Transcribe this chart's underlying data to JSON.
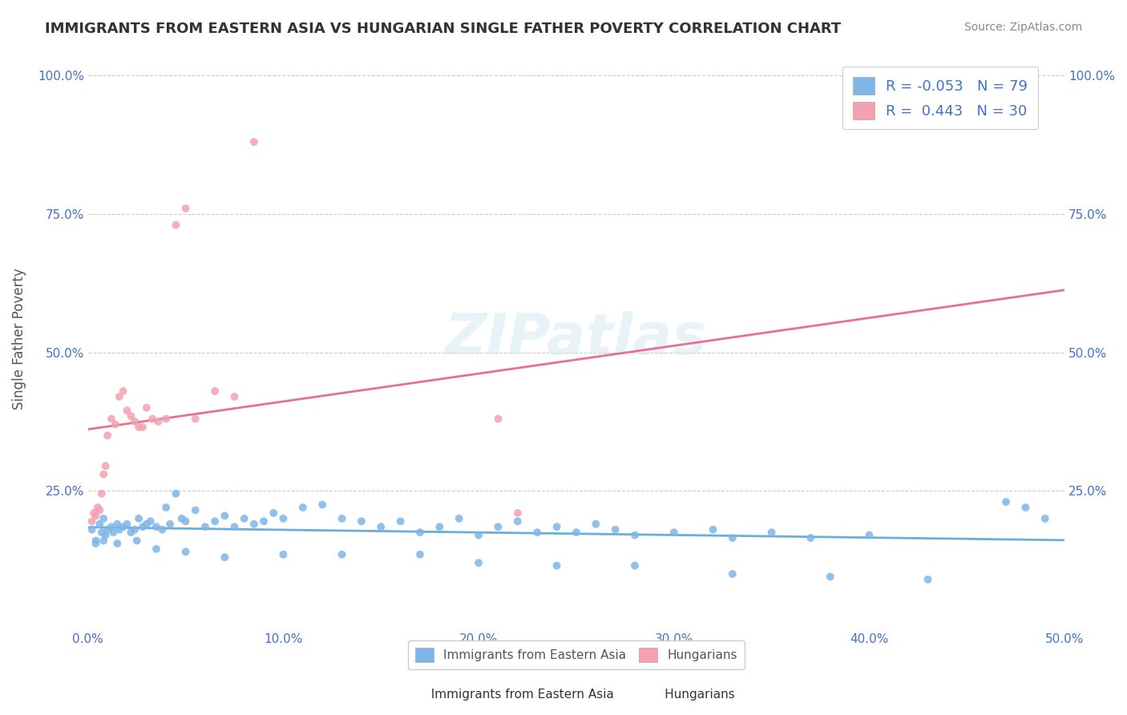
{
  "title": "IMMIGRANTS FROM EASTERN ASIA VS HUNGARIAN SINGLE FATHER POVERTY CORRELATION CHART",
  "source": "Source: ZipAtlas.com",
  "xlabel": "",
  "ylabel": "Single Father Poverty",
  "xlim": [
    0.0,
    0.5
  ],
  "ylim": [
    0.0,
    1.05
  ],
  "xtick_labels": [
    "0.0%",
    "10.0%",
    "20.0%",
    "30.0%",
    "40.0%",
    "50.0%"
  ],
  "xtick_vals": [
    0.0,
    0.1,
    0.2,
    0.3,
    0.4,
    0.5
  ],
  "ytick_labels": [
    "25.0%",
    "50.0%",
    "75.0%",
    "100.0%"
  ],
  "ytick_vals": [
    0.25,
    0.5,
    0.75,
    1.0
  ],
  "right_ytick_labels": [
    "25.0%",
    "50.0%",
    "75.0%",
    "100.0%"
  ],
  "right_ytick_vals": [
    0.25,
    0.5,
    0.75,
    1.0
  ],
  "legend_r1": "R = -0.053",
  "legend_n1": "N = 79",
  "legend_r2": "R =  0.443",
  "legend_n2": "N = 30",
  "color_blue": "#7EB6E8",
  "color_pink": "#F4A0B0",
  "line_color_blue": "#6AAEDC",
  "line_color_pink": "#E87090",
  "watermark": "ZIPatlas",
  "background_color": "#FFFFFF",
  "blue_scatter_x": [
    0.002,
    0.004,
    0.006,
    0.007,
    0.008,
    0.009,
    0.01,
    0.012,
    0.013,
    0.015,
    0.016,
    0.018,
    0.02,
    0.022,
    0.024,
    0.026,
    0.028,
    0.03,
    0.032,
    0.035,
    0.038,
    0.04,
    0.042,
    0.045,
    0.048,
    0.05,
    0.055,
    0.06,
    0.065,
    0.07,
    0.075,
    0.08,
    0.085,
    0.09,
    0.095,
    0.1,
    0.11,
    0.12,
    0.13,
    0.14,
    0.15,
    0.16,
    0.17,
    0.18,
    0.19,
    0.2,
    0.21,
    0.22,
    0.23,
    0.24,
    0.25,
    0.26,
    0.27,
    0.28,
    0.3,
    0.32,
    0.33,
    0.35,
    0.37,
    0.4,
    0.004,
    0.008,
    0.015,
    0.025,
    0.035,
    0.05,
    0.07,
    0.1,
    0.13,
    0.17,
    0.2,
    0.24,
    0.28,
    0.33,
    0.38,
    0.43,
    0.47,
    0.48,
    0.49
  ],
  "blue_scatter_y": [
    0.18,
    0.16,
    0.19,
    0.175,
    0.2,
    0.17,
    0.18,
    0.185,
    0.175,
    0.19,
    0.18,
    0.185,
    0.19,
    0.175,
    0.18,
    0.2,
    0.185,
    0.19,
    0.195,
    0.185,
    0.18,
    0.22,
    0.19,
    0.245,
    0.2,
    0.195,
    0.215,
    0.185,
    0.195,
    0.205,
    0.185,
    0.2,
    0.19,
    0.195,
    0.21,
    0.2,
    0.22,
    0.225,
    0.2,
    0.195,
    0.185,
    0.195,
    0.175,
    0.185,
    0.2,
    0.17,
    0.185,
    0.195,
    0.175,
    0.185,
    0.175,
    0.19,
    0.18,
    0.17,
    0.175,
    0.18,
    0.165,
    0.175,
    0.165,
    0.17,
    0.155,
    0.16,
    0.155,
    0.16,
    0.145,
    0.14,
    0.13,
    0.135,
    0.135,
    0.135,
    0.12,
    0.115,
    0.115,
    0.1,
    0.095,
    0.09,
    0.23,
    0.22,
    0.2
  ],
  "pink_scatter_x": [
    0.002,
    0.003,
    0.004,
    0.005,
    0.006,
    0.007,
    0.008,
    0.009,
    0.01,
    0.012,
    0.014,
    0.016,
    0.018,
    0.02,
    0.022,
    0.024,
    0.026,
    0.028,
    0.03,
    0.033,
    0.036,
    0.04,
    0.045,
    0.05,
    0.055,
    0.065,
    0.075,
    0.085,
    0.22,
    0.21
  ],
  "pink_scatter_y": [
    0.195,
    0.21,
    0.205,
    0.22,
    0.215,
    0.245,
    0.28,
    0.295,
    0.35,
    0.38,
    0.37,
    0.42,
    0.43,
    0.395,
    0.385,
    0.375,
    0.365,
    0.365,
    0.4,
    0.38,
    0.375,
    0.38,
    0.73,
    0.76,
    0.38,
    0.43,
    0.42,
    0.88,
    0.21,
    0.38
  ]
}
